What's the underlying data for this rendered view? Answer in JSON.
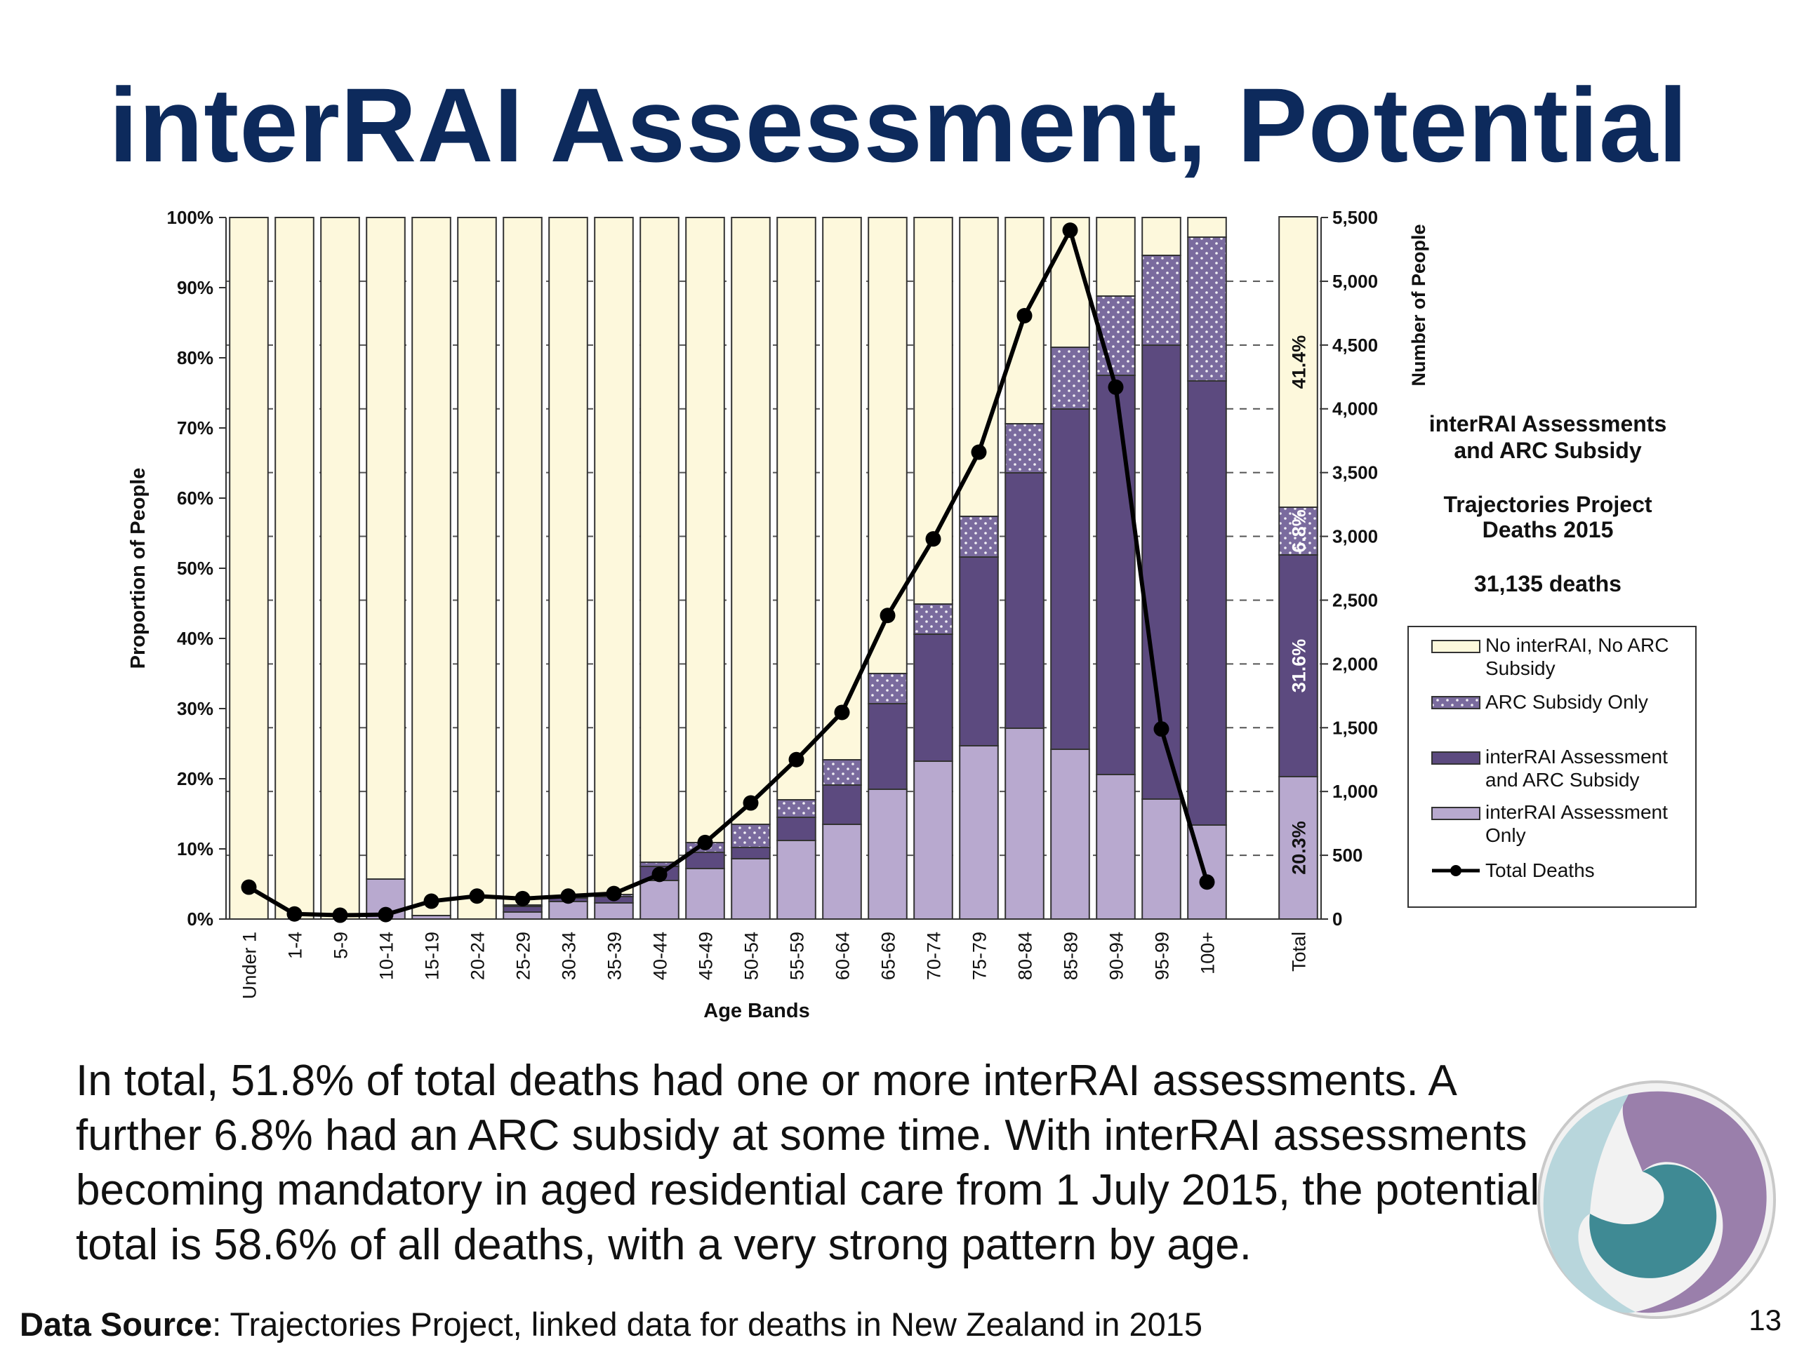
{
  "slide": {
    "title": "interRAI Assessment, Potential",
    "body_lines": [
      "In total, 51.8% of total deaths had one or more interRAI assessments. A",
      "further 6.8% had an ARC subsidy at some time. With interRAI assessments",
      "becoming mandatory in aged residential care from 1 July 2015, the potential",
      "total is 58.6% of all deaths, with a very strong pattern by age."
    ],
    "source_label": "Data Source",
    "source_text": ": Trajectories Project, linked data for deaths in New Zealand in 2015",
    "page_number": "13",
    "logo_icon": "ministry-swirl-logo-icon"
  },
  "colors": {
    "title": "#0d2a5c",
    "no_interrai_no_arc": "#fdf8dc",
    "arc_subsidy_only": "#7a6b9e",
    "interrai_and_arc": "#5c4a7f",
    "interrai_only": "#b8a9cf",
    "total_deaths": "#000000"
  },
  "chart_data": {
    "type": "bar",
    "stacked": true,
    "percent_stacked": true,
    "info_title": [
      "interRAI Assessments",
      "and ARC Subsidy"
    ],
    "info_subtitle": [
      "Trajectories Project",
      "Deaths 2015"
    ],
    "info_total": "31,135 deaths",
    "xlabel": "Age Bands",
    "ylabel": "Proportion of People",
    "y2label": "Number of People",
    "ylim": [
      0,
      100
    ],
    "y2lim": [
      0,
      5500
    ],
    "y_ticks": [
      "0%",
      "10%",
      "20%",
      "30%",
      "40%",
      "50%",
      "60%",
      "70%",
      "80%",
      "90%",
      "100%"
    ],
    "y2_ticks": [
      "0",
      "500",
      "1,000",
      "1,500",
      "2,000",
      "2,500",
      "3,000",
      "3,500",
      "4,000",
      "4,500",
      "5,000",
      "5,500"
    ],
    "categories": [
      "Under 1",
      "1-4",
      "5-9",
      "10-14",
      "15-19",
      "20-24",
      "25-29",
      "30-34",
      "35-39",
      "40-44",
      "45-49",
      "50-54",
      "55-59",
      "60-64",
      "65-69",
      "70-74",
      "75-79",
      "80-84",
      "85-89",
      "90-94",
      "95-99",
      "100+",
      "",
      "Total"
    ],
    "series": [
      {
        "name": "interRAI Assessment Only",
        "values": [
          0,
          0,
          0,
          5.7,
          0.5,
          0,
          1.0,
          2.5,
          2.3,
          5.5,
          7.2,
          8.6,
          11.2,
          13.5,
          18.5,
          22.5,
          24.7,
          27.2,
          24.2,
          20.6,
          17.1,
          13.4,
          null,
          20.3
        ]
      },
      {
        "name": "interRAI Assessment and ARC Subsidy",
        "values": [
          0,
          0,
          0,
          0,
          0,
          0,
          0.8,
          0.5,
          0.9,
          2.0,
          2.3,
          1.6,
          3.3,
          5.6,
          12.2,
          18.1,
          26.9,
          36.4,
          48.5,
          56.9,
          64.7,
          63.3,
          null,
          31.6
        ]
      },
      {
        "name": "ARC Subsidy Only",
        "values": [
          0,
          0,
          0,
          0,
          0,
          0,
          0.2,
          0.2,
          0.3,
          0.6,
          1.4,
          3.3,
          2.5,
          3.6,
          4.3,
          4.3,
          5.8,
          7.0,
          8.8,
          11.3,
          12.8,
          20.5,
          null,
          6.8
        ]
      },
      {
        "name": "No interRAI, No ARC Subsidy",
        "values": [
          100,
          100,
          100,
          94.3,
          99.5,
          100,
          98.0,
          96.8,
          96.5,
          91.9,
          89.1,
          86.5,
          83.0,
          77.3,
          65.0,
          55.1,
          42.6,
          29.4,
          18.5,
          11.2,
          5.4,
          2.8,
          null,
          41.4
        ]
      },
      {
        "name": "Total Deaths",
        "axis": "right",
        "type": "line",
        "values": [
          250,
          40,
          30,
          35,
          140,
          180,
          160,
          180,
          200,
          350,
          600,
          910,
          1250,
          1620,
          2380,
          2980,
          3660,
          4730,
          5400,
          4170,
          1490,
          290,
          null,
          null
        ]
      }
    ],
    "total_bar_labels": [
      "20.3%",
      "31.6%",
      "6.8%",
      "41.4%"
    ],
    "legend": {
      "placement": "right",
      "entries": [
        "No interRAI, No ARC Subsidy",
        "ARC Subsidy Only",
        "interRAI Assessment and ARC Subsidy",
        "interRAI Assessment Only",
        "Total Deaths"
      ]
    }
  }
}
